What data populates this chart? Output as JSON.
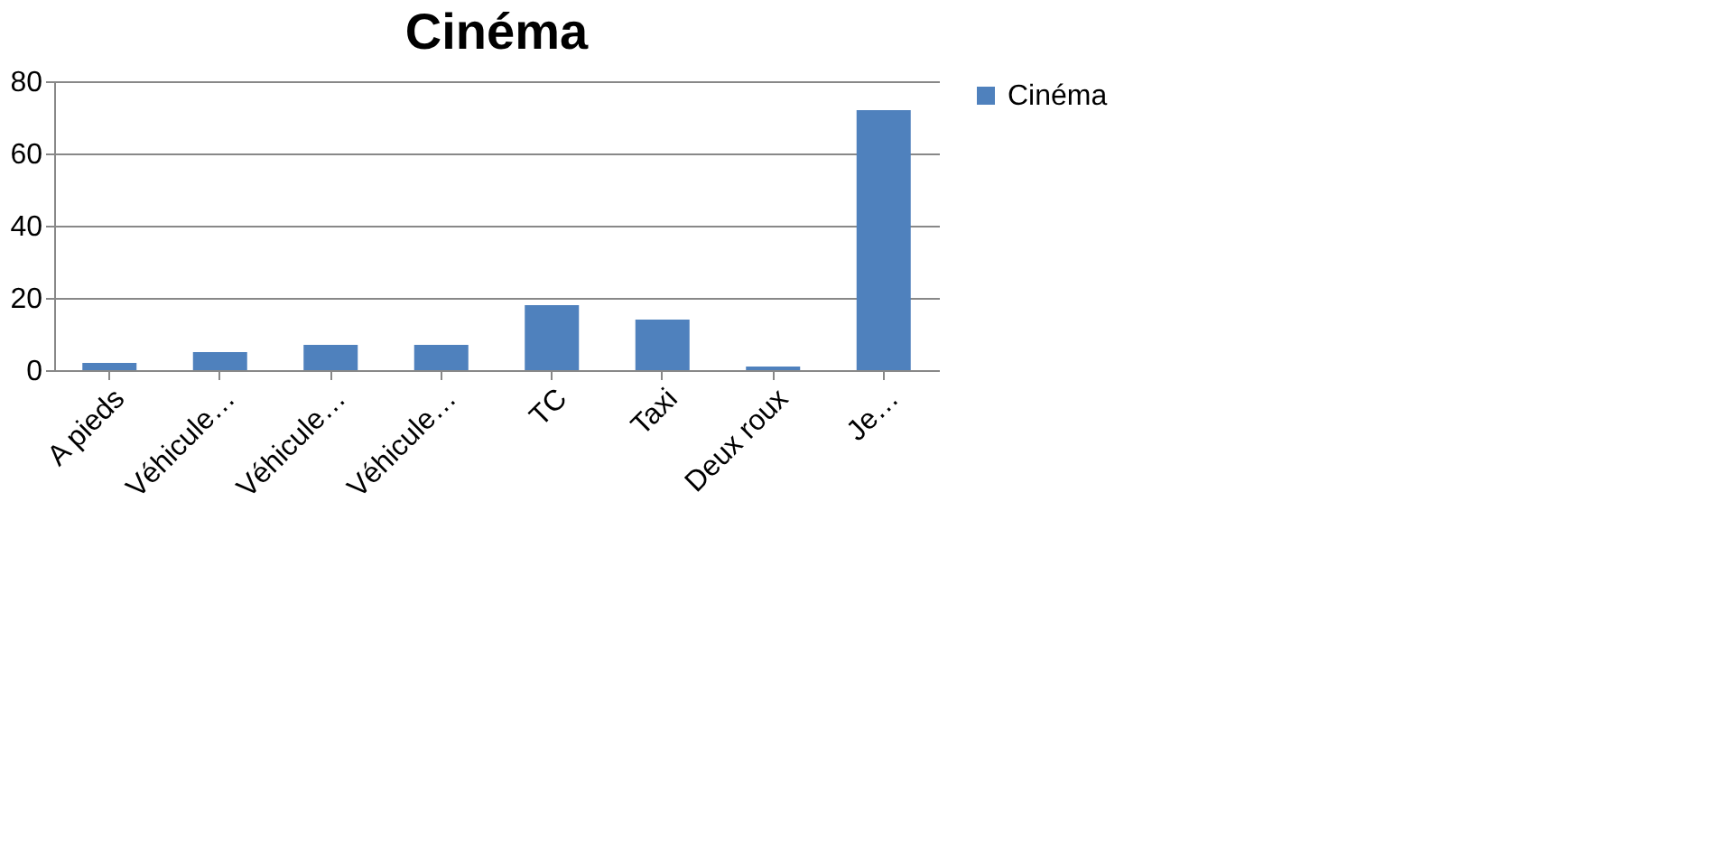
{
  "chart_data": {
    "type": "bar",
    "title": "Cinéma",
    "categories": [
      "A pieds",
      "Véhicule…",
      "Véhicule…",
      "Véhicule…",
      "TC",
      "Taxi",
      "Deux roux",
      "Je…"
    ],
    "series": [
      {
        "name": "Cinéma",
        "color": "#4f81bd",
        "values": [
          2,
          5,
          7,
          7,
          18,
          14,
          1,
          72
        ]
      }
    ],
    "ylim": [
      0,
      80
    ],
    "yticks": [
      0,
      20,
      40,
      60,
      80
    ],
    "grid": "y",
    "legend": "right"
  }
}
